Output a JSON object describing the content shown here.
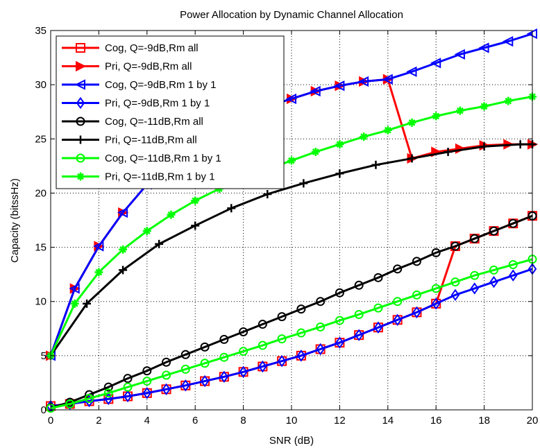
{
  "chart_data": {
    "type": "line",
    "title": "Power Allocation by Dynamic Channel Allocation",
    "xlabel": "SNR (dB)",
    "ylabel": "Capacity (bitssHz)",
    "xlim": [
      0,
      20
    ],
    "ylim": [
      0,
      35
    ],
    "xticks": [
      "0",
      "2",
      "4",
      "6",
      "8",
      "10",
      "12",
      "14",
      "16",
      "18",
      "20"
    ],
    "yticks": [
      "0",
      "5",
      "10",
      "15",
      "20",
      "25",
      "30",
      "35"
    ],
    "grid": true,
    "legend_position": "top-left",
    "series": [
      {
        "name": "Cog, Q=-9dB,Rm all",
        "color": "#ff0000",
        "marker": "square",
        "x": [
          0,
          0.8,
          1.6,
          2.4,
          3.2,
          4,
          4.8,
          5.6,
          6.4,
          7.2,
          8,
          8.8,
          9.6,
          10.4,
          11.2,
          12,
          12.8,
          13.6,
          14.4,
          15.2,
          16,
          16.8,
          17.6,
          18.4,
          19.2,
          20
        ],
        "y": [
          0.35,
          0.55,
          0.8,
          1.0,
          1.25,
          1.55,
          1.9,
          2.25,
          2.65,
          3.05,
          3.5,
          4.0,
          4.5,
          5.0,
          5.6,
          6.2,
          6.9,
          7.6,
          8.3,
          9.0,
          9.8,
          15.1,
          15.8,
          16.5,
          17.2,
          17.9
        ]
      },
      {
        "name": "Pri, Q=-9dB,Rm all",
        "color": "#ff0000",
        "marker": "triangle-right",
        "x": [
          0,
          1,
          2,
          3,
          4,
          5,
          6,
          7,
          8,
          9,
          10,
          11,
          12,
          13,
          14,
          15,
          16,
          17,
          18,
          19,
          20
        ],
        "y": [
          5,
          11.2,
          15.1,
          18.2,
          20.8,
          22.9,
          24.7,
          26.1,
          27.2,
          28.0,
          28.7,
          29.4,
          29.9,
          30.3,
          30.5,
          23.2,
          23.8,
          24.1,
          24.4,
          24.5,
          24.5
        ]
      },
      {
        "name": "Cog, Q=-9dB,Rm 1 by 1",
        "color": "#0000ff",
        "marker": "triangle-left",
        "x": [
          0,
          1,
          2,
          3,
          4,
          5,
          6,
          7,
          8,
          9,
          10,
          11,
          12,
          13,
          14,
          15,
          16,
          17,
          18,
          19,
          20
        ],
        "y": [
          5,
          11.2,
          15.1,
          18.2,
          20.8,
          22.9,
          24.7,
          26.1,
          27.2,
          28.0,
          28.7,
          29.4,
          29.9,
          30.3,
          30.5,
          31.2,
          32.0,
          32.8,
          33.4,
          34.0,
          34.7
        ]
      },
      {
        "name": "Pri, Q=-9dB,Rm 1 by 1",
        "color": "#0000ff",
        "marker": "diamond",
        "x": [
          0,
          0.8,
          1.6,
          2.4,
          3.2,
          4,
          4.8,
          5.6,
          6.4,
          7.2,
          8,
          8.8,
          9.6,
          10.4,
          11.2,
          12,
          12.8,
          13.6,
          14.4,
          15.2,
          16,
          16.8,
          17.6,
          18.4,
          19.2,
          20
        ],
        "y": [
          0.35,
          0.55,
          0.8,
          1.0,
          1.25,
          1.55,
          1.9,
          2.25,
          2.65,
          3.05,
          3.5,
          4.0,
          4.5,
          5.0,
          5.6,
          6.2,
          6.9,
          7.6,
          8.3,
          9.0,
          9.8,
          10.6,
          11.2,
          11.8,
          12.4,
          13.0
        ]
      },
      {
        "name": "Cog, Q=-11dB,Rm all",
        "color": "#000000",
        "marker": "circle",
        "x": [
          0,
          0.8,
          1.6,
          2.4,
          3.2,
          4,
          4.8,
          5.6,
          6.4,
          7.2,
          8,
          8.8,
          9.6,
          10.4,
          11.2,
          12,
          12.8,
          13.6,
          14.4,
          15.2,
          16,
          16.8,
          17.6,
          18.4,
          19.2,
          20
        ],
        "y": [
          0.2,
          0.7,
          1.4,
          2.1,
          2.9,
          3.6,
          4.4,
          5.1,
          5.8,
          6.5,
          7.2,
          7.9,
          8.6,
          9.3,
          10.0,
          10.8,
          11.5,
          12.2,
          13.0,
          13.7,
          14.5,
          15.1,
          15.8,
          16.5,
          17.2,
          17.9
        ]
      },
      {
        "name": "Pri, Q=-11dB,Rm all",
        "color": "#000000",
        "marker": "plus",
        "x": [
          0,
          1.5,
          3,
          4.5,
          6,
          7.5,
          9,
          10.5,
          12,
          13.5,
          15,
          16.5,
          18,
          19.5,
          20
        ],
        "y": [
          5,
          9.8,
          12.9,
          15.3,
          17.0,
          18.6,
          19.9,
          20.9,
          21.8,
          22.6,
          23.2,
          23.8,
          24.3,
          24.5,
          24.5
        ]
      },
      {
        "name": "Cog, Q=-11dB,Rm 1 by 1",
        "color": "#00ff00",
        "marker": "circle",
        "x": [
          0,
          0.8,
          1.6,
          2.4,
          3.2,
          4,
          4.8,
          5.6,
          6.4,
          7.2,
          8,
          8.8,
          9.6,
          10.4,
          11.2,
          12,
          12.8,
          13.6,
          14.4,
          15.2,
          16,
          16.8,
          17.6,
          18.4,
          19.2,
          20
        ],
        "y": [
          0.15,
          0.55,
          1.05,
          1.55,
          2.1,
          2.65,
          3.2,
          3.75,
          4.3,
          4.85,
          5.4,
          5.95,
          6.55,
          7.1,
          7.65,
          8.25,
          8.8,
          9.4,
          10.0,
          10.6,
          11.2,
          11.8,
          12.4,
          12.9,
          13.4,
          13.9
        ]
      },
      {
        "name": "Pri, Q=-11dB,Rm 1 by 1",
        "color": "#00ff00",
        "marker": "star",
        "x": [
          0,
          1,
          2,
          3,
          4,
          5,
          6,
          7,
          8,
          9,
          10,
          11,
          12,
          13,
          14,
          15,
          16,
          17,
          18,
          19,
          20
        ],
        "y": [
          5,
          9.8,
          12.7,
          14.8,
          16.5,
          18.0,
          19.3,
          20.4,
          21.3,
          22.2,
          23.0,
          23.8,
          24.5,
          25.2,
          25.8,
          26.5,
          27.1,
          27.6,
          28.0,
          28.5,
          28.9
        ]
      }
    ]
  }
}
